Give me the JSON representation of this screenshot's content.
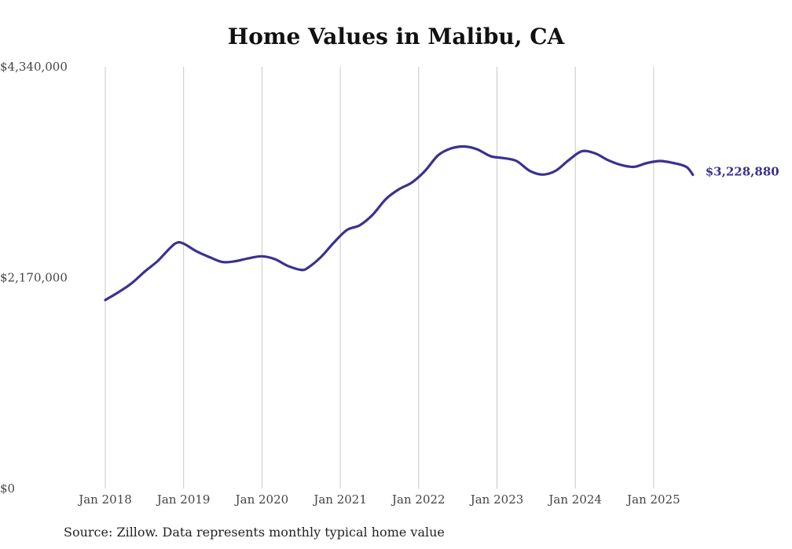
{
  "chart_data": {
    "type": "line",
    "title": "Home Values in Malibu, CA",
    "xlabel": "",
    "ylabel": "",
    "ylim": [
      0,
      4340000
    ],
    "y_ticks": [
      "$4,340,000",
      "$2,170,000",
      "$0"
    ],
    "x_ticks": [
      "Jan 2018",
      "Jan 2019",
      "Jan 2020",
      "Jan 2021",
      "Jan 2022",
      "Jan 2023",
      "Jan 2024",
      "Jan 2025"
    ],
    "grid": "vertical",
    "end_label": "$3,228,880",
    "series": [
      {
        "color": "#3b3191",
        "points": [
          [
            "2018-01",
            1940000
          ],
          [
            "2018-03",
            2020000
          ],
          [
            "2018-05",
            2110000
          ],
          [
            "2018-07",
            2230000
          ],
          [
            "2018-09",
            2340000
          ],
          [
            "2018-11",
            2480000
          ],
          [
            "2018-12",
            2530000
          ],
          [
            "2019-01",
            2520000
          ],
          [
            "2019-03",
            2440000
          ],
          [
            "2019-05",
            2380000
          ],
          [
            "2019-07",
            2330000
          ],
          [
            "2019-09",
            2340000
          ],
          [
            "2019-11",
            2370000
          ],
          [
            "2020-01",
            2390000
          ],
          [
            "2020-03",
            2360000
          ],
          [
            "2020-05",
            2290000
          ],
          [
            "2020-07",
            2250000
          ],
          [
            "2020-08",
            2270000
          ],
          [
            "2020-10",
            2380000
          ],
          [
            "2020-12",
            2530000
          ],
          [
            "2021-02",
            2660000
          ],
          [
            "2021-04",
            2710000
          ],
          [
            "2021-06",
            2820000
          ],
          [
            "2021-08",
            2980000
          ],
          [
            "2021-10",
            3080000
          ],
          [
            "2021-12",
            3150000
          ],
          [
            "2022-02",
            3270000
          ],
          [
            "2022-04",
            3430000
          ],
          [
            "2022-06",
            3500000
          ],
          [
            "2022-08",
            3520000
          ],
          [
            "2022-10",
            3490000
          ],
          [
            "2022-12",
            3420000
          ],
          [
            "2023-02",
            3400000
          ],
          [
            "2023-04",
            3370000
          ],
          [
            "2023-06",
            3270000
          ],
          [
            "2023-08",
            3230000
          ],
          [
            "2023-10",
            3270000
          ],
          [
            "2023-12",
            3380000
          ],
          [
            "2024-02",
            3470000
          ],
          [
            "2024-04",
            3450000
          ],
          [
            "2024-06",
            3380000
          ],
          [
            "2024-08",
            3330000
          ],
          [
            "2024-10",
            3310000
          ],
          [
            "2024-12",
            3350000
          ],
          [
            "2025-02",
            3370000
          ],
          [
            "2025-04",
            3350000
          ],
          [
            "2025-06",
            3310000
          ],
          [
            "2025-07",
            3228880
          ]
        ]
      }
    ]
  },
  "source_note": "Source: Zillow. Data represents monthly typical home value"
}
